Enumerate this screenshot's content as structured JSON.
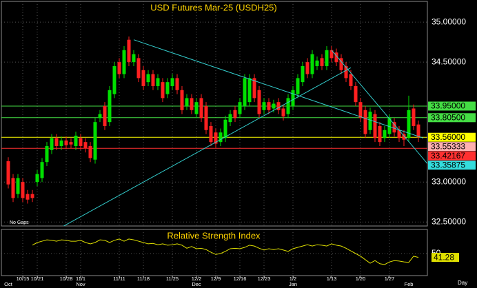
{
  "chart_data": {
    "type": "candlestick",
    "title": "USD Futures Mar-25 (USDH25)",
    "note": "No Gaps",
    "period": "Day",
    "up_color": "#00e000",
    "down_color": "#ff2020",
    "trendline_color": "#33cccc",
    "grid": true,
    "ylim": [
      32.45,
      35.26
    ],
    "yticks": [
      {
        "value": 35,
        "label": "35.00000"
      },
      {
        "value": 34.5,
        "label": "34.50000"
      },
      {
        "value": 33,
        "label": "33.00000"
      },
      {
        "value": 32.5,
        "label": "32.50000"
      }
    ],
    "categories": [
      null,
      null,
      null,
      "10/15",
      null,
      null,
      "10/21",
      null,
      null,
      null,
      null,
      null,
      "10/28",
      null,
      null,
      "11/1",
      null,
      null,
      null,
      null,
      null,
      null,
      null,
      "11/11",
      null,
      null,
      null,
      null,
      "11/18",
      null,
      null,
      null,
      null,
      null,
      "11/25",
      null,
      null,
      null,
      null,
      "12/2",
      null,
      null,
      null,
      "12/9",
      null,
      null,
      null,
      null,
      "12/16",
      null,
      null,
      null,
      null,
      "12/23",
      null,
      null,
      null,
      null,
      null,
      "1/2",
      null,
      null,
      null,
      null,
      null,
      null,
      null,
      "1/13",
      null,
      null,
      null,
      null,
      null,
      "1/20",
      null,
      null,
      null,
      null,
      null,
      "1/27",
      null,
      null,
      null,
      null,
      null,
      null
    ],
    "months": [
      "Oct",
      null,
      null,
      null,
      null,
      null,
      null,
      null,
      null,
      null,
      null,
      null,
      null,
      null,
      null,
      "Nov",
      null,
      null,
      null,
      null,
      null,
      null,
      null,
      null,
      null,
      null,
      null,
      null,
      null,
      null,
      null,
      null,
      null,
      null,
      null,
      null,
      null,
      null,
      null,
      "Dec",
      null,
      null,
      null,
      null,
      null,
      null,
      null,
      null,
      null,
      null,
      null,
      null,
      null,
      null,
      null,
      null,
      null,
      null,
      null,
      "Jan",
      null,
      null,
      null,
      null,
      null,
      null,
      null,
      null,
      null,
      null,
      null,
      null,
      null,
      null,
      null,
      null,
      null,
      null,
      null,
      null,
      null,
      null,
      null,
      "Feb",
      null,
      null
    ],
    "open": [
      33.26,
      33.05,
      32.85,
      33.0,
      32.85,
      32.85,
      33.0,
      33.05,
      33.25,
      33.4,
      33.55,
      33.45,
      33.52,
      33.5,
      33.45,
      33.55,
      33.5,
      33.45,
      33.28,
      33.8,
      33.95,
      33.75,
      34.1,
      34.5,
      34.35,
      34.78,
      34.5,
      34.55,
      34.4,
      34.25,
      34.35,
      34.2,
      34.25,
      34.1,
      34.2,
      34.3,
      34.15,
      33.95,
      34.05,
      33.85,
      34.05,
      33.95,
      33.7,
      33.62,
      33.5,
      33.55,
      33.75,
      33.9,
      33.85,
      33.95,
      34.0,
      34.3,
      34.15,
      33.9,
      34.0,
      33.92,
      34.0,
      33.92,
      33.85,
      33.95,
      34.1,
      34.25,
      34.5,
      34.35,
      34.45,
      34.55,
      34.45,
      34.65,
      34.62,
      34.55,
      34.45,
      34.35,
      34.2,
      34.0,
      33.9,
      33.65,
      33.85,
      33.7,
      33.55,
      33.6,
      33.75,
      33.65,
      33.6,
      33.55,
      33.92,
      33.72
    ],
    "high": [
      33.31,
      33.1,
      33.1,
      33.05,
      32.9,
      32.9,
      33.15,
      33.3,
      33.5,
      33.6,
      33.6,
      33.57,
      33.57,
      33.55,
      33.63,
      33.6,
      33.55,
      33.5,
      33.8,
      33.9,
      34.0,
      34.2,
      34.5,
      34.55,
      34.7,
      34.82,
      34.65,
      34.6,
      34.45,
      34.4,
      34.4,
      34.35,
      34.3,
      34.3,
      34.35,
      34.35,
      34.2,
      34.1,
      34.1,
      34.05,
      34.1,
      34.0,
      33.75,
      33.67,
      33.67,
      33.83,
      33.9,
      33.95,
      34.05,
      34.35,
      34.35,
      34.35,
      34.2,
      34.05,
      34.05,
      34.03,
      34.05,
      33.97,
      34.1,
      34.2,
      34.35,
      34.5,
      34.55,
      34.65,
      34.57,
      34.6,
      34.7,
      34.7,
      34.67,
      34.6,
      34.5,
      34.4,
      34.25,
      34.05,
      33.95,
      33.93,
      33.9,
      33.75,
      33.7,
      33.85,
      33.8,
      33.7,
      33.65,
      34.08,
      33.97,
      33.77
    ],
    "low": [
      32.92,
      32.75,
      32.8,
      32.75,
      32.73,
      32.75,
      32.95,
      33.0,
      33.2,
      33.35,
      33.4,
      33.4,
      33.41,
      33.42,
      33.4,
      33.4,
      33.37,
      33.25,
      33.23,
      33.75,
      33.65,
      33.7,
      34.05,
      34.3,
      34.3,
      34.45,
      34.45,
      34.25,
      34.15,
      34.2,
      34.15,
      34.15,
      34.0,
      34.05,
      34.15,
      34.1,
      33.85,
      33.9,
      33.85,
      33.8,
      33.75,
      33.6,
      33.45,
      33.43,
      33.45,
      33.5,
      33.7,
      33.75,
      33.8,
      33.9,
      33.95,
      34.0,
      33.8,
      33.85,
      33.85,
      33.87,
      33.85,
      33.77,
      33.8,
      33.9,
      34.05,
      34.2,
      34.3,
      34.3,
      34.4,
      34.4,
      34.4,
      34.5,
      34.45,
      34.35,
      34.25,
      34.15,
      33.95,
      33.75,
      33.55,
      33.6,
      33.5,
      33.45,
      33.5,
      33.55,
      33.57,
      33.5,
      33.45,
      33.5,
      33.65,
      33.5
    ],
    "close": [
      32.97,
      32.8,
      33.05,
      32.8,
      32.78,
      32.8,
      33.1,
      33.25,
      33.45,
      33.55,
      33.45,
      33.52,
      33.46,
      33.47,
      33.58,
      33.45,
      33.42,
      33.3,
      33.75,
      33.85,
      33.7,
      34.15,
      34.45,
      34.35,
      34.65,
      34.5,
      34.6,
      34.3,
      34.2,
      34.35,
      34.2,
      34.3,
      34.05,
      34.25,
      34.3,
      34.15,
      33.9,
      34.05,
      33.9,
      34.0,
      33.8,
      33.65,
      33.5,
      33.48,
      33.62,
      33.78,
      33.85,
      33.8,
      34.0,
      34.3,
      34.3,
      34.05,
      33.85,
      34.0,
      33.9,
      33.98,
      33.9,
      33.82,
      34.05,
      34.15,
      34.3,
      34.45,
      34.35,
      34.6,
      34.52,
      34.45,
      34.65,
      34.55,
      34.5,
      34.4,
      34.3,
      34.2,
      34.0,
      33.8,
      33.6,
      33.88,
      33.55,
      33.5,
      33.65,
      33.8,
      33.62,
      33.55,
      33.53,
      33.9,
      33.7,
      33.56
    ],
    "trendlines": [
      {
        "x": [
          26,
          86
        ],
        "y": [
          34.78,
          33.55
        ]
      },
      {
        "x": [
          10,
          71
        ],
        "y": [
          32.4,
          34.43
        ]
      },
      {
        "x": [
          67,
          87
        ],
        "y": [
          34.65,
          33.22
        ]
      }
    ],
    "levels": [
      {
        "value": 33.95,
        "label": "33.95000",
        "color": "#44dd44",
        "line": true
      },
      {
        "value": 33.805,
        "label": "33.80500",
        "color": "#44dd44",
        "line": true
      },
      {
        "value": 33.56,
        "label": "33.56000",
        "color": "#ffff00",
        "line": true
      },
      {
        "value": 33.55333,
        "label": "33.55333",
        "color": "#ffb0b0",
        "line": false
      },
      {
        "value": 33.42167,
        "label": "33.42167",
        "color": "#ff3030",
        "line": true
      },
      {
        "value": 33.35875,
        "label": "33.35875",
        "color": "#33dddd",
        "line": false
      }
    ],
    "rsi": {
      "title": "Relative Strength Index",
      "color": "#e0e000",
      "ylim": [
        0,
        100
      ],
      "yticks": [
        50
      ],
      "values": [
        null,
        null,
        null,
        null,
        null,
        69,
        75,
        78,
        81,
        80,
        78,
        81,
        80,
        78,
        78,
        80,
        75,
        72,
        75,
        81,
        80,
        75,
        80,
        83,
        78,
        83,
        81,
        78,
        75,
        72,
        73,
        70,
        72,
        69,
        70,
        72,
        69,
        62,
        66,
        61,
        62,
        59,
        53,
        48,
        50,
        55,
        61,
        62,
        61,
        64,
        69,
        67,
        62,
        58,
        61,
        59,
        61,
        58,
        55,
        61,
        64,
        67,
        70,
        67,
        70,
        69,
        67,
        72,
        69,
        67,
        62,
        56,
        50,
        44,
        36,
        28,
        34,
        27,
        25,
        31,
        34,
        33,
        31,
        30,
        44,
        41.28
      ]
    }
  }
}
